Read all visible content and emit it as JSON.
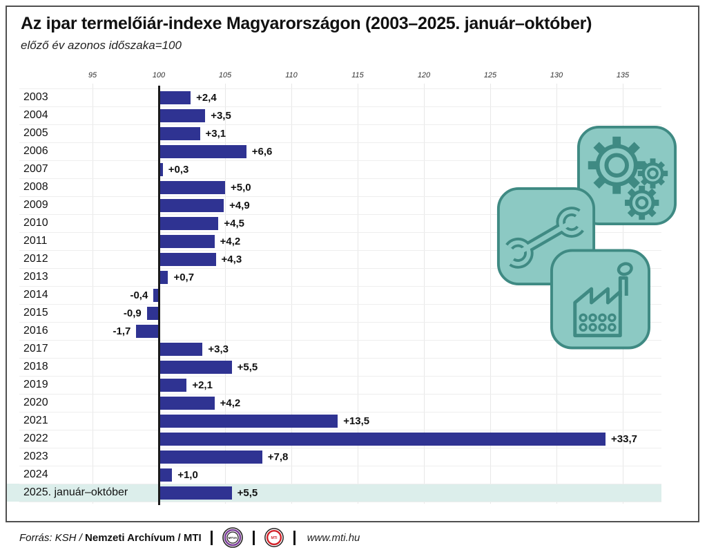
{
  "title": "Az ipar termelőiár-indexe Magyarországon (2003–2025. január–október)",
  "subtitle": "előző év azonos időszaka=100",
  "chart_data": {
    "type": "bar",
    "orientation": "horizontal",
    "baseline": 100,
    "categories": [
      "2003",
      "2004",
      "2005",
      "2006",
      "2007",
      "2008",
      "2009",
      "2010",
      "2011",
      "2012",
      "2013",
      "2014",
      "2015",
      "2016",
      "2017",
      "2018",
      "2019",
      "2020",
      "2021",
      "2022",
      "2023",
      "2024",
      "2025. január–október"
    ],
    "values": [
      2.4,
      3.5,
      3.1,
      6.6,
      0.3,
      5.0,
      4.9,
      4.5,
      4.2,
      4.3,
      0.7,
      -0.4,
      -0.9,
      -1.7,
      3.3,
      5.5,
      2.1,
      4.2,
      13.5,
      33.7,
      7.8,
      1.0,
      5.5
    ],
    "labels": [
      "+2,4",
      "+3,5",
      "+3,1",
      "+6,6",
      "+0,3",
      "+5,0",
      "+4,9",
      "+4,5",
      "+4,2",
      "+4,3",
      "+0,7",
      "-0,4",
      "-0,9",
      "-1,7",
      "+3,3",
      "+5,5",
      "+2,1",
      "+4,2",
      "+13,5",
      "+33,7",
      "+7,8",
      "+1,0",
      "+5,5"
    ],
    "xticks": [
      95,
      100,
      105,
      110,
      115,
      120,
      125,
      130,
      135
    ],
    "xlim": [
      93,
      138
    ],
    "grid": true,
    "bar_color": "#2f3392",
    "highlight_row_color": "#dceeeb",
    "highlighted_category": "2025. január–október",
    "axis_line_color": "#1a1a1a",
    "gridline_color": "#e7e7e7"
  },
  "icons": {
    "gears": "gears-icon",
    "wrench": "wrench-icon",
    "factory": "factory-icon",
    "card_fill": "#8cc9c3",
    "card_stroke": "#3f8a83"
  },
  "footer": {
    "source_prefix": "Forrás: KSH /",
    "source_bold": "Nemzeti Archívum",
    "source_suffix": "/ MTI",
    "mtva_label": "MTVA",
    "mti_label": "MTI",
    "website": "www.mti.hu"
  }
}
